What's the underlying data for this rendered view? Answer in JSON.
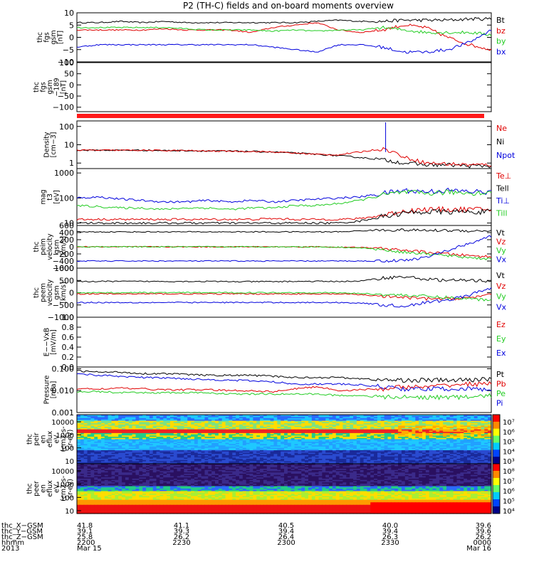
{
  "title": "P2 (TH-C) fields and on-board moments overview",
  "colors": {
    "black": "#000000",
    "red": "#e00000",
    "green": "#22cc22",
    "blue": "#0000dd",
    "bar_red": "#ff1a1a"
  },
  "chart_data": [
    {
      "type": "line",
      "ylabel": [
        "thc",
        "fgs",
        "gsm",
        "[nT]"
      ],
      "ylim": [
        -10,
        10
      ],
      "y_ticks": [
        "10",
        "5",
        "0",
        "−5",
        "−10"
      ],
      "legend": [
        {
          "label": "Bt",
          "color": "#000000"
        },
        {
          "label": "bz",
          "color": "#e00000"
        },
        {
          "label": "by",
          "color": "#22cc22"
        },
        {
          "label": "bx",
          "color": "#0000dd"
        }
      ],
      "series": [
        {
          "name": "Bt",
          "color": "#000000",
          "values": [
            6,
            6,
            6.5,
            6,
            6.5,
            6,
            6,
            6,
            6,
            6,
            6,
            6.5,
            7,
            6.5,
            6.5,
            7,
            7,
            7,
            7.5,
            7.5
          ]
        },
        {
          "name": "bz",
          "color": "#e00000",
          "values": [
            3,
            3,
            3,
            3,
            3.5,
            3,
            3,
            3,
            2,
            4,
            5,
            6,
            3,
            2,
            3,
            5,
            4,
            0,
            -3,
            -5
          ]
        },
        {
          "name": "by",
          "color": "#22cc22",
          "values": [
            4,
            4,
            4,
            4,
            4,
            3.5,
            3,
            3,
            3,
            2.5,
            3,
            2.5,
            3,
            3,
            4,
            3,
            2,
            2,
            2,
            1
          ]
        },
        {
          "name": "bx",
          "color": "#0000dd",
          "values": [
            -4,
            -3,
            -3,
            -3,
            -3,
            -3,
            -3,
            -3,
            -3,
            -4,
            -5,
            -6,
            -3,
            -3,
            -4,
            -6,
            -6,
            -5,
            -2,
            3
          ]
        }
      ]
    },
    {
      "type": "line",
      "ylabel": [
        "thc",
        "fgs",
        "gsm",
        "−189",
        "[nT]"
      ],
      "ylim": [
        -120,
        100
      ],
      "y_ticks": [
        "100",
        "50",
        "0",
        "−50",
        "−100"
      ],
      "legend": [],
      "series": []
    },
    {
      "type": "line",
      "ylabel": [
        "Density",
        "[cm−3]"
      ],
      "scale": "log",
      "ylim": [
        0.5,
        200
      ],
      "y_ticks": [
        "100",
        "10",
        "1"
      ],
      "legend": [
        {
          "label": "Ne",
          "color": "#e00000"
        },
        {
          "label": "Ni",
          "color": "#000000"
        },
        {
          "label": "Npot",
          "color": "#0000dd"
        }
      ],
      "series": [
        {
          "name": "Ni",
          "color": "#000000",
          "values": [
            5,
            5,
            5,
            5,
            4.8,
            4.8,
            4.5,
            4.5,
            4.3,
            4,
            3.5,
            3,
            2.5,
            2,
            1.5,
            1,
            0.8,
            0.8,
            0.7,
            0.7
          ]
        },
        {
          "name": "Ne",
          "color": "#e00000",
          "values": [
            5,
            5,
            5,
            5,
            4.8,
            4.8,
            4.5,
            4.5,
            4.3,
            4,
            3.5,
            3,
            2.8,
            4,
            6,
            2,
            1,
            0.9,
            0.8,
            0.8
          ]
        }
      ]
    },
    {
      "type": "line",
      "ylabel": [
        "mag",
        "t3",
        "[eV]"
      ],
      "scale": "log",
      "ylim": [
        8,
        1500
      ],
      "y_ticks": [
        "1000",
        "100",
        "10"
      ],
      "legend": [
        {
          "label": "Te⊥",
          "color": "#e00000"
        },
        {
          "label": "Tell",
          "color": "#000000"
        },
        {
          "label": "Ti⊥",
          "color": "#0000dd"
        },
        {
          "label": "Till",
          "color": "#22cc22"
        }
      ],
      "series": [
        {
          "name": "Ti⊥",
          "color": "#0000dd",
          "values": [
            100,
            110,
            90,
            80,
            70,
            70,
            80,
            70,
            80,
            70,
            80,
            90,
            100,
            110,
            150,
            200,
            180,
            200,
            180,
            170
          ]
        },
        {
          "name": "Till",
          "color": "#22cc22",
          "values": [
            50,
            45,
            40,
            40,
            35,
            40,
            40,
            35,
            40,
            40,
            50,
            50,
            60,
            80,
            130,
            170,
            150,
            170,
            160,
            160
          ]
        },
        {
          "name": "Te⊥",
          "color": "#e00000",
          "values": [
            14,
            14,
            14,
            14,
            14,
            14,
            14,
            14,
            14,
            15,
            14,
            14,
            14,
            15,
            20,
            30,
            35,
            35,
            35,
            35
          ]
        },
        {
          "name": "Tell",
          "color": "#000000",
          "values": [
            10,
            10,
            10,
            10,
            10,
            10,
            10,
            10,
            10,
            10,
            10,
            10,
            10,
            12,
            18,
            25,
            28,
            28,
            28,
            28
          ]
        }
      ]
    },
    {
      "type": "line",
      "ylabel": [
        "thc",
        "peim",
        "velocity",
        "gsm",
        "[km/s]"
      ],
      "ylim": [
        -600,
        600
      ],
      "y_ticks": [
        "600",
        "400",
        "200",
        "0",
        "−200",
        "−400",
        "−600"
      ],
      "legend": [
        {
          "label": "Vt",
          "color": "#000000"
        },
        {
          "label": "Vz",
          "color": "#e00000"
        },
        {
          "label": "Vy",
          "color": "#22cc22"
        },
        {
          "label": "Vx",
          "color": "#0000dd"
        }
      ],
      "series": [
        {
          "name": "Vt",
          "color": "#000000",
          "values": [
            420,
            420,
            420,
            420,
            420,
            420,
            420,
            420,
            420,
            420,
            420,
            420,
            420,
            450,
            470,
            470,
            460,
            460,
            450,
            450
          ]
        },
        {
          "name": "Vz",
          "color": "#e00000",
          "values": [
            0,
            0,
            0,
            0,
            0,
            0,
            0,
            0,
            0,
            0,
            0,
            0,
            -10,
            -20,
            -50,
            -100,
            -150,
            -200,
            -250,
            -280
          ]
        },
        {
          "name": "Vy",
          "color": "#22cc22",
          "values": [
            0,
            0,
            0,
            0,
            0,
            0,
            0,
            0,
            0,
            0,
            0,
            0,
            -10,
            -30,
            -80,
            -150,
            -200,
            -250,
            -300,
            -350
          ]
        },
        {
          "name": "Vx",
          "color": "#0000dd",
          "values": [
            -400,
            -400,
            -400,
            -400,
            -400,
            -400,
            -400,
            -400,
            -400,
            -400,
            -400,
            -400,
            -400,
            -400,
            -400,
            -380,
            -300,
            -100,
            100,
            300
          ]
        }
      ]
    },
    {
      "type": "line",
      "ylabel": [
        "thc",
        "peem",
        "velocity",
        "gsm",
        "[km/s]"
      ],
      "ylim": [
        -1000,
        1000
      ],
      "y_ticks": [
        "1000",
        "500",
        "0",
        "−500",
        "−1000"
      ],
      "legend": [
        {
          "label": "Vt",
          "color": "#000000"
        },
        {
          "label": "Vz",
          "color": "#e00000"
        },
        {
          "label": "Vy",
          "color": "#22cc22"
        },
        {
          "label": "Vx",
          "color": "#0000dd"
        }
      ],
      "series": [
        {
          "name": "Vt",
          "color": "#000000",
          "values": [
            450,
            460,
            460,
            460,
            460,
            460,
            460,
            450,
            450,
            450,
            460,
            460,
            460,
            470,
            600,
            650,
            550,
            500,
            500,
            480
          ]
        },
        {
          "name": "Vz",
          "color": "#e00000",
          "values": [
            -50,
            -50,
            -50,
            -50,
            -50,
            -50,
            -50,
            -50,
            -50,
            -50,
            -50,
            -60,
            -50,
            -80,
            -150,
            -200,
            -250,
            -250,
            -200,
            -100
          ]
        },
        {
          "name": "Vy",
          "color": "#22cc22",
          "values": [
            0,
            0,
            0,
            0,
            0,
            0,
            0,
            0,
            0,
            0,
            0,
            0,
            -10,
            -30,
            -80,
            -100,
            -150,
            -200,
            -250,
            -300
          ]
        },
        {
          "name": "Vx",
          "color": "#0000dd",
          "values": [
            -400,
            -400,
            -400,
            -400,
            -400,
            -400,
            -400,
            -400,
            -400,
            -400,
            -400,
            -400,
            -400,
            -420,
            -500,
            -550,
            -400,
            -300,
            -100,
            200
          ]
        }
      ]
    },
    {
      "type": "line",
      "ylabel": [
        "E−−VxB",
        "[mV/m]"
      ],
      "ylim": [
        0,
        1
      ],
      "y_ticks": [
        "1.0",
        "0.8",
        "0.6",
        "0.4",
        "0.2",
        "0.0"
      ],
      "legend": [
        {
          "label": "Ez",
          "color": "#e00000"
        },
        {
          "label": "Ey",
          "color": "#22cc22"
        },
        {
          "label": "Ex",
          "color": "#0000dd"
        }
      ],
      "series": []
    },
    {
      "type": "line",
      "ylabel": [
        "Pressure",
        "[nPa]"
      ],
      "scale": "log",
      "ylim": [
        0.001,
        0.12
      ],
      "y_ticks": [
        "0.100",
        "0.010",
        "0.001"
      ],
      "legend": [
        {
          "label": "Pt",
          "color": "#000000"
        },
        {
          "label": "Pb",
          "color": "#e00000"
        },
        {
          "label": "Pe",
          "color": "#22cc22"
        },
        {
          "label": "Pi",
          "color": "#0000dd"
        }
      ],
      "series": [
        {
          "name": "Pt",
          "color": "#000000",
          "values": [
            0.08,
            0.07,
            0.07,
            0.06,
            0.06,
            0.055,
            0.05,
            0.05,
            0.05,
            0.045,
            0.04,
            0.04,
            0.04,
            0.035,
            0.03,
            0.03,
            0.03,
            0.03,
            0.03,
            0.035
          ]
        },
        {
          "name": "Pi",
          "color": "#0000dd",
          "values": [
            0.06,
            0.05,
            0.045,
            0.04,
            0.038,
            0.035,
            0.032,
            0.03,
            0.028,
            0.025,
            0.02,
            0.02,
            0.02,
            0.018,
            0.015,
            0.012,
            0.012,
            0.012,
            0.012,
            0.011
          ]
        },
        {
          "name": "Pb",
          "color": "#e00000",
          "values": [
            0.012,
            0.012,
            0.013,
            0.012,
            0.011,
            0.011,
            0.011,
            0.01,
            0.01,
            0.009,
            0.012,
            0.015,
            0.01,
            0.011,
            0.012,
            0.015,
            0.014,
            0.018,
            0.02,
            0.02
          ]
        },
        {
          "name": "Pe",
          "color": "#22cc22",
          "values": [
            0.009,
            0.009,
            0.008,
            0.008,
            0.008,
            0.008,
            0.008,
            0.007,
            0.007,
            0.007,
            0.007,
            0.007,
            0.006,
            0.006,
            0.005,
            0.005,
            0.005,
            0.005,
            0.005,
            0.006
          ]
        }
      ]
    },
    {
      "type": "heatmap",
      "ylabel": [
        "thc",
        "peir",
        "en",
        "eflux",
        "eV",
        "(cm2-s-",
        "sr-eV)"
      ],
      "y_ticks": [
        "10000",
        "1000",
        "100",
        "10"
      ],
      "colorbar_ticks": [
        "10⁷",
        "10⁶",
        "10⁵",
        "10⁴",
        "10³"
      ]
    },
    {
      "type": "heatmap",
      "ylabel": [
        "thc",
        "peer",
        "en",
        "eflux",
        "eV",
        "(cm2-s-",
        "sr-eV)"
      ],
      "y_ticks": [
        "10000",
        "1000",
        "100",
        "10"
      ],
      "colorbar_ticks": [
        "10⁸",
        "10⁷",
        "10⁶",
        "10⁵",
        "10⁴"
      ]
    }
  ],
  "footer": {
    "row_labels": [
      "thc_X−GSM",
      "thc_Y−GSM",
      "thc_Z−GSM",
      "hhmm",
      "2013"
    ],
    "columns": [
      [
        "41.8",
        "39.1",
        "25.8",
        "2200",
        "Mar 15"
      ],
      [
        "41.1",
        "39.3",
        "26.2",
        "2230",
        ""
      ],
      [
        "40.5",
        "39.4",
        "26.4",
        "2300",
        ""
      ],
      [
        "40.0",
        "39.4",
        "26.3",
        "2330",
        ""
      ],
      [
        "39.6",
        "39.6",
        "26.2",
        "0000",
        "Mar 16"
      ]
    ]
  }
}
